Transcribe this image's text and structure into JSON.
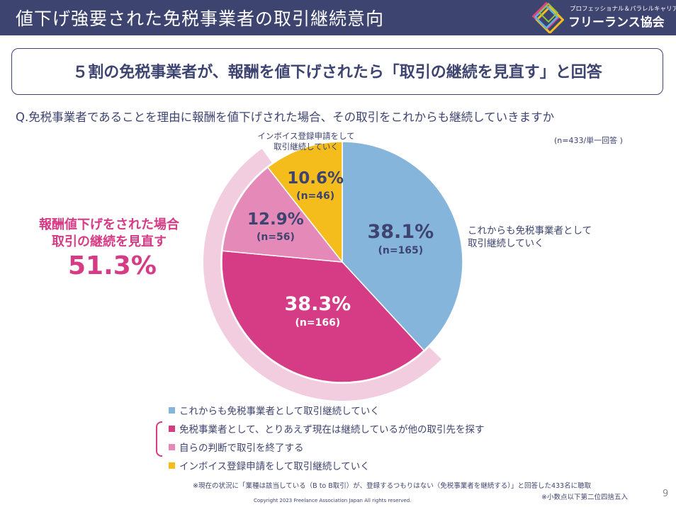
{
  "header": {
    "title": "値下げ強要された免税事業者の取引継続意向",
    "logo_subtitle": "プロフェッショナル＆パラレルキャリア",
    "logo_title": "フリーランス協会"
  },
  "banner": {
    "text": "５割の免税事業者が、報酬を値下げされたら「取引の継続を見直す」と回答"
  },
  "question": "Q.免税事業者であることを理由に報酬を値下げされた場合、その取引をこれからも継続していきますか",
  "sample_note": "(n=433/単一回答 )",
  "callout": {
    "line1": "報酬値下げをされた場合",
    "line2": "取引の継続を見直す",
    "value": "51.3%"
  },
  "chart_data": {
    "type": "pie",
    "title": "Q.免税事業者であることを理由に報酬を値下げされた場合、その取引をこれからも継続していきますか",
    "total_n": 433,
    "slices": [
      {
        "label": "これからも免税事業者として取引継続していく",
        "percent": 38.1,
        "percent_text": "38.1%",
        "n_text": "(n=165)",
        "color": "#86b5dc",
        "outside_label": "これからも免税事業者として\n取引継続していく"
      },
      {
        "label": "免税事業者として、とりあえず現在は継続しているが他の取引先を探す",
        "percent": 38.3,
        "percent_text": "38.3%",
        "n_text": "(n=166)",
        "color": "#d63c86",
        "outside_label": ""
      },
      {
        "label": "自らの判断で取引を終了する",
        "percent": 12.9,
        "percent_text": "12.9%",
        "n_text": "(n=56)",
        "color": "#e58ab8",
        "outside_label": ""
      },
      {
        "label": "インボイス登録申請をして取引継続していく",
        "percent": 10.6,
        "percent_text": "10.6%",
        "n_text": "(n=46)",
        "color": "#f5bd1c",
        "outside_label": "インボイス登録申請をして\n取引継続していく"
      }
    ],
    "highlight_arc": {
      "covers": [
        "免税事業者として、とりあえず現在は継続しているが他の取引先を探す",
        "自らの判断で取引を終了する"
      ],
      "total_percent": 51.3,
      "color": "#f2cde0"
    }
  },
  "legend": [
    {
      "label": "これからも免税事業者として取引継続していく",
      "color": "#86b5dc"
    },
    {
      "label": "免税事業者として、とりあえず現在は継続しているが他の取引先を探す",
      "color": "#d63c86"
    },
    {
      "label": "自らの判断で取引を終了する",
      "color": "#e58ab8"
    },
    {
      "label": "インボイス登録申請をして取引継続していく",
      "color": "#f5bd1c"
    }
  ],
  "footnotes": {
    "note1": "※現在の状況に「業種は該当している（B to B取引）が、登録するつもりはない（免税事業者を継続する）」と回答した433名に聴取",
    "note2": "※小数点以下第二位四捨五入"
  },
  "copyright": "Copyright 2023 Freelance Association Japan All rights reserved.",
  "page_number": "9"
}
